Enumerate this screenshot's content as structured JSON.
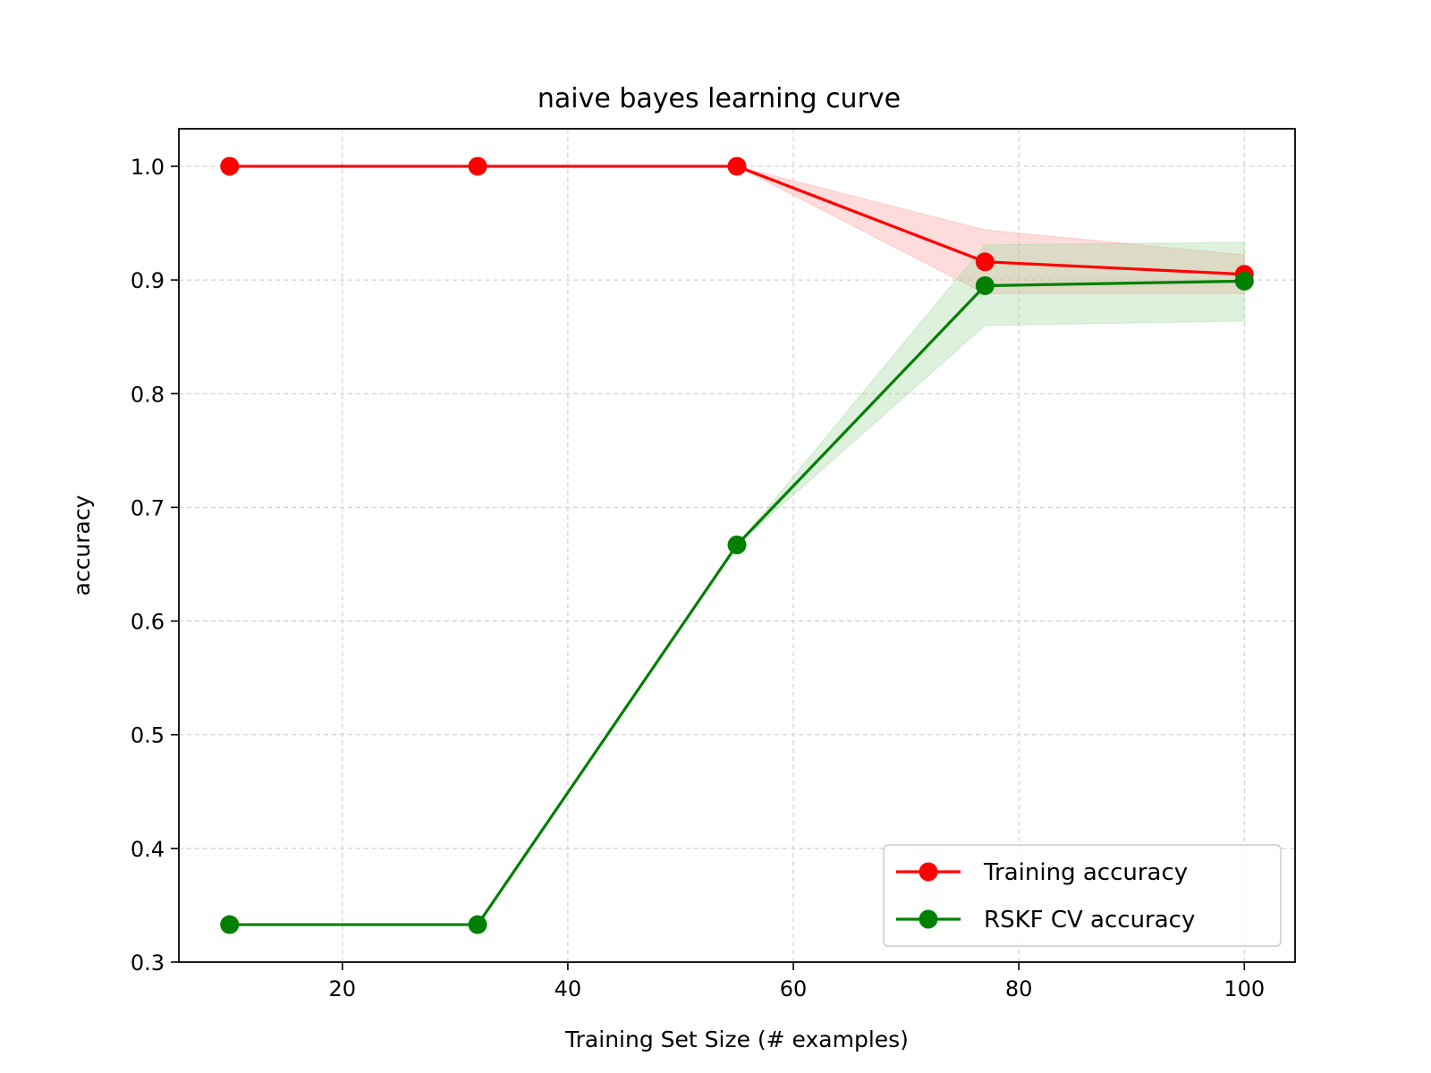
{
  "chart_data": {
    "type": "line",
    "title": "naive bayes learning curve",
    "xlabel": "Training Set Size (# examples)",
    "ylabel": "accuracy",
    "x": [
      10,
      32,
      55,
      77,
      100
    ],
    "xlim": [
      5.5,
      104.5
    ],
    "ylim": [
      0.3,
      1.033
    ],
    "xticks": [
      20,
      40,
      60,
      80,
      100
    ],
    "xtick_labels": [
      "20",
      "40",
      "60",
      "80",
      "100"
    ],
    "yticks": [
      0.3,
      0.4,
      0.5,
      0.6,
      0.7,
      0.8,
      0.9,
      1.0
    ],
    "ytick_labels": [
      "0.3",
      "0.4",
      "0.5",
      "0.6",
      "0.7",
      "0.8",
      "0.9",
      "1.0"
    ],
    "grid": true,
    "legend_position": "bottom-right",
    "series": [
      {
        "name": "Training accuracy",
        "color": "#ff0000",
        "band_color": "#ff9c9c",
        "values": [
          1.0,
          1.0,
          1.0,
          0.916,
          0.905
        ],
        "band_lower": [
          1.0,
          1.0,
          1.0,
          0.888,
          0.888
        ],
        "band_upper": [
          1.0,
          1.0,
          1.0,
          0.944,
          0.922
        ]
      },
      {
        "name": "RSKF CV accuracy",
        "color": "#008000",
        "band_color": "#9fd89f",
        "values": [
          0.333,
          0.333,
          0.667,
          0.895,
          0.899
        ],
        "band_lower": [
          0.333,
          0.333,
          0.667,
          0.86,
          0.864
        ],
        "band_upper": [
          0.333,
          0.333,
          0.667,
          0.931,
          0.933
        ]
      }
    ]
  }
}
